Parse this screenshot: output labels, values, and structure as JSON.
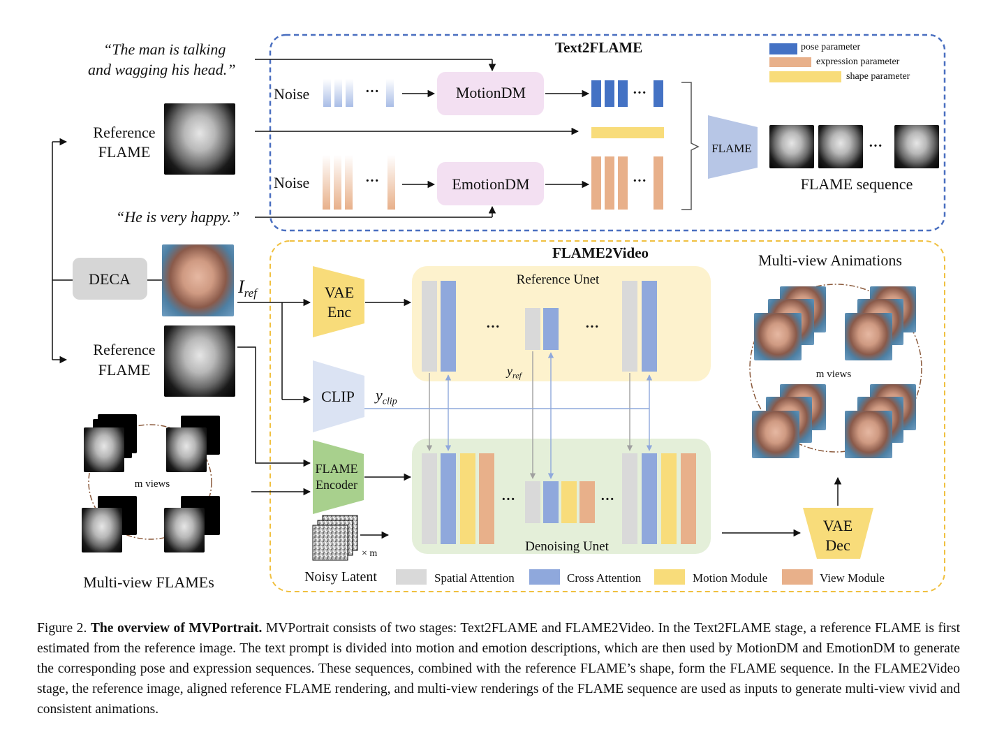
{
  "text2flame": {
    "title": "Text2FLAME",
    "prompt_motion_line1": "“The man is talking",
    "prompt_motion_line2": "and wagging his head.”",
    "prompt_emotion": "“He is very happy.”",
    "noise_label": "Noise",
    "motion_dm": "MotionDM",
    "emotion_dm": "EmotionDM",
    "flame_block": "FLAME",
    "flame_sequence": "FLAME sequence",
    "ellipsis": "···",
    "legend": [
      {
        "label": "pose parameter",
        "color": "#4472c4"
      },
      {
        "label": "expression parameter",
        "color": "#e8b08a"
      },
      {
        "label": "shape parameter",
        "color": "#f8dc7a"
      }
    ]
  },
  "left": {
    "reference_flame_line1": "Reference",
    "reference_flame_line2": "FLAME",
    "deca": "DECA",
    "iref": "I",
    "iref_sub": "ref",
    "m_views": "m views",
    "multi_view_flames": "Multi-view FLAMEs"
  },
  "flame2video": {
    "title": "FLAME2Video",
    "vae_enc_line1": "VAE",
    "vae_enc_line2": "Enc",
    "clip": "CLIP",
    "yclip": "y",
    "yclip_sub": "clip",
    "yref": "y",
    "yref_sub": "ref",
    "flame_encoder_line1": "FLAME",
    "flame_encoder_line2": "Encoder",
    "noisy_latent": "Noisy Latent",
    "times_m": "× m",
    "reference_unet": "Reference Unet",
    "denoising_unet": "Denoising Unet",
    "vae_dec_line1": "VAE",
    "vae_dec_line2": "Dec",
    "multi_view_animations": "Multi-view Animations",
    "m_views": "m views",
    "legend": [
      {
        "label": "Spatial Attention",
        "color": "#d9d9d9"
      },
      {
        "label": "Cross Attention",
        "color": "#8fa8dc"
      },
      {
        "label": "Motion Module",
        "color": "#f8dc7a"
      },
      {
        "label": "View Module",
        "color": "#e8b08a"
      }
    ]
  },
  "caption": {
    "prefix": "Figure 2. ",
    "bold": "The overview of MVPortrait.",
    "body": " MVPortrait consists of two stages: Text2FLAME and FLAME2Video. In the Text2FLAME stage, a reference FLAME is first estimated from the reference image. The text prompt is divided into motion and emotion descriptions, which are then used by MotionDM and EmotionDM to generate the corresponding pose and expression sequences. These sequences, combined with the reference FLAME’s shape, form the FLAME sequence. In the FLAME2Video stage, the reference image, aligned reference FLAME rendering, and multi-view renderings of the FLAME sequence are used as inputs to generate multi-view vivid and consistent animations."
  }
}
